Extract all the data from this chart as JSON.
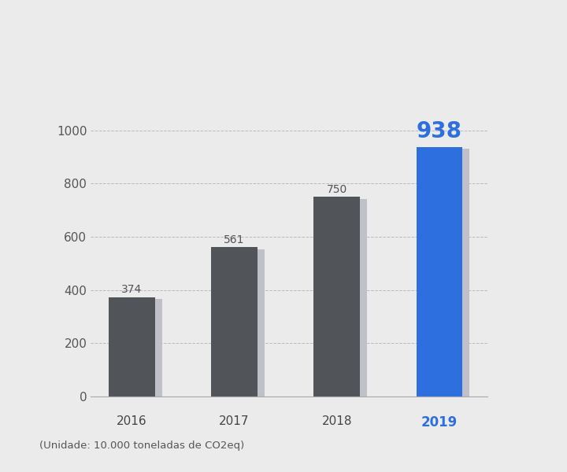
{
  "years": [
    "2016",
    "2017",
    "2018",
    "2019"
  ],
  "values": [
    374,
    561,
    750,
    938
  ],
  "bar_colors": [
    "#515459",
    "#515459",
    "#515459",
    "#2E6FDF"
  ],
  "shadow_color": "#C0C0C8",
  "value_label_colors": [
    "#515459",
    "#515459",
    "#515459",
    "#2E6FDF"
  ],
  "highlight_year": "2019",
  "highlight_value": 938,
  "ylim": [
    0,
    1100
  ],
  "yticks": [
    0,
    200,
    400,
    600,
    800,
    1000
  ],
  "background_color": "#EBEBEB",
  "grid_color": "#BBBBBB",
  "footnote": "(Unidade: 10.000 toneladas de CO2eq)",
  "footnote_fontsize": 9.5,
  "bar_width": 0.45,
  "value_fontsize": 10,
  "highlight_value_fontsize": 20,
  "tick_fontsize": 11,
  "highlight_tick_fontsize": 12
}
